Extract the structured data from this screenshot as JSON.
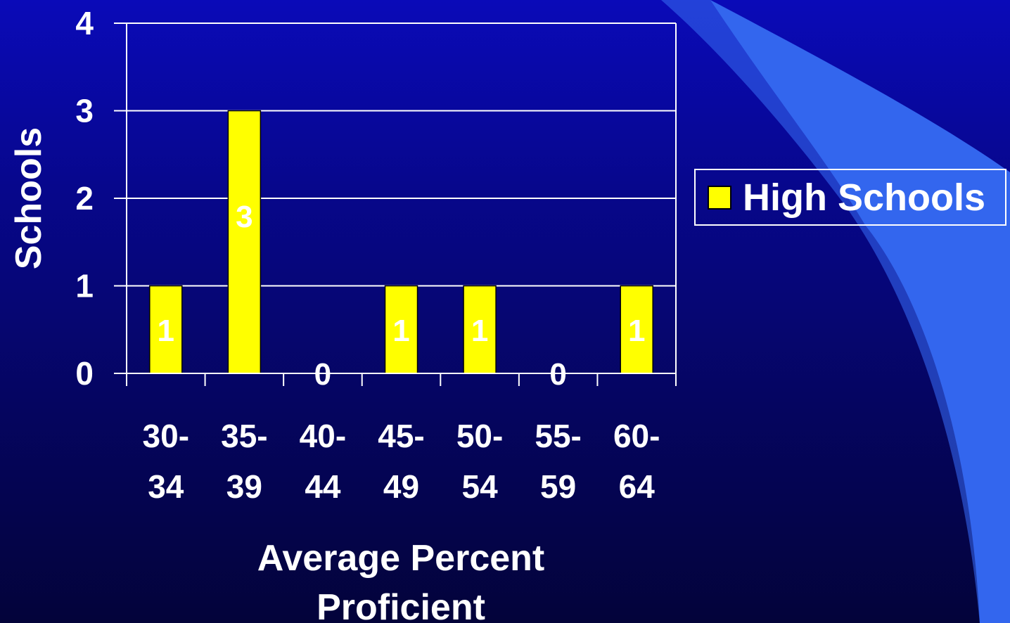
{
  "chart_data": {
    "type": "bar",
    "categories": [
      "30-34",
      "35-39",
      "40-44",
      "45-49",
      "50-54",
      "55-59",
      "60-64"
    ],
    "category_lines": [
      [
        "30-",
        "34"
      ],
      [
        "35-",
        "39"
      ],
      [
        "40-",
        "44"
      ],
      [
        "45-",
        "49"
      ],
      [
        "50-",
        "54"
      ],
      [
        "55-",
        "59"
      ],
      [
        "60-",
        "64"
      ]
    ],
    "series": [
      {
        "name": "High Schools",
        "values": [
          1,
          3,
          0,
          1,
          1,
          0,
          1
        ],
        "color": "#ffff00"
      }
    ],
    "data_labels": [
      "1",
      "3",
      "0",
      "1",
      "1",
      "0",
      "1"
    ],
    "xlabel": "Average Percent Proficient",
    "xlabel_lines": [
      "Average Percent",
      "Proficient"
    ],
    "ylabel": "Schools",
    "ylim": [
      0,
      4
    ],
    "yticks": [
      "0",
      "1",
      "2",
      "3",
      "4"
    ],
    "grid": true,
    "legend_position": "right"
  },
  "legend": {
    "label": "High Schools"
  },
  "colors": {
    "background_top": "#0a0ab8",
    "background_bottom": "#03033a",
    "bar": "#ffff00",
    "decoration": "#3366ee",
    "text": "#ffffff"
  }
}
